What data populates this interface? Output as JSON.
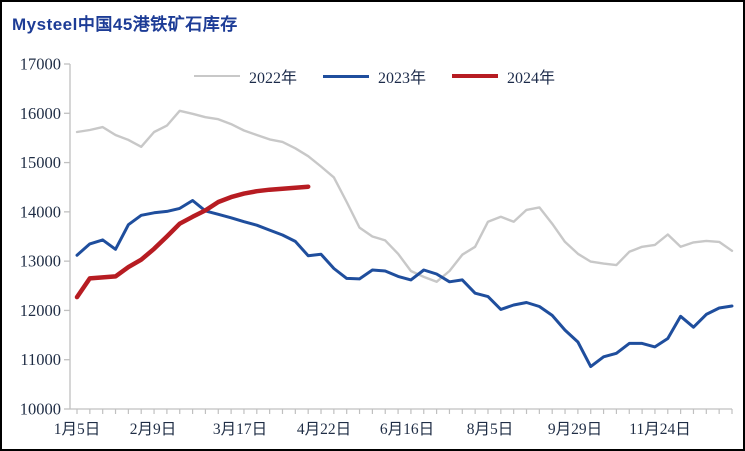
{
  "title": "Mysteel中国45港铁矿石库存",
  "colors": {
    "title_text": "#1d3c96",
    "axis_line": "#c0c0c0",
    "axis_text": "#1f2d45",
    "legend_text": "#1c2b4a",
    "series_2022": "#c8c8c8",
    "series_2023": "#1f4e9d",
    "series_2024": "#b71c22",
    "frame_border": "#000000"
  },
  "chart_data": {
    "type": "line",
    "title": "Mysteel中国45港铁矿石库存",
    "xlabel": "",
    "ylabel": "",
    "ylim": [
      10000,
      17000
    ],
    "yticks": [
      17000,
      16000,
      15000,
      14000,
      13000,
      12000,
      11000,
      10000
    ],
    "xtick_labels": [
      "1月5日",
      "2月9日",
      "3月17日",
      "4月22日",
      "6月16日",
      "8月5日",
      "9月29日",
      "11月24日"
    ],
    "grid": false,
    "legend_position": "top-center",
    "x_unit": "weekly observations, 52 per year",
    "series": [
      {
        "name": "2022年",
        "color": "#c8c8c8",
        "line_width": 2.4,
        "values": [
          15620,
          15660,
          15720,
          15560,
          15460,
          15320,
          15620,
          15750,
          16050,
          15990,
          15920,
          15880,
          15780,
          15650,
          15560,
          15470,
          15420,
          15290,
          15130,
          14920,
          14700,
          14200,
          13680,
          13500,
          13420,
          13150,
          12800,
          12680,
          12580,
          12800,
          13130,
          13290,
          13800,
          13900,
          13800,
          14040,
          14090,
          13760,
          13390,
          13150,
          12990,
          12950,
          12920,
          13190,
          13290,
          13330,
          13540,
          13290,
          13380,
          13410,
          13390,
          13210
        ]
      },
      {
        "name": "2023年",
        "color": "#1f4e9d",
        "line_width": 3,
        "values": [
          13120,
          13350,
          13430,
          13240,
          13740,
          13930,
          13980,
          14010,
          14070,
          14230,
          14020,
          13950,
          13880,
          13800,
          13730,
          13630,
          13530,
          13400,
          13110,
          13140,
          12850,
          12650,
          12640,
          12820,
          12800,
          12690,
          12620,
          12820,
          12740,
          12580,
          12620,
          12350,
          12280,
          12020,
          12110,
          12160,
          12080,
          11900,
          11600,
          11360,
          10860,
          11060,
          11130,
          11330,
          11330,
          11260,
          11430,
          11880,
          11660,
          11920,
          12050,
          12090
        ]
      },
      {
        "name": "2024年",
        "color": "#b71c22",
        "line_width": 4.5,
        "values": [
          12270,
          12650,
          12670,
          12690,
          12880,
          13030,
          13250,
          13500,
          13760,
          13900,
          14030,
          14200,
          14300,
          14370,
          14420,
          14450,
          14470,
          14490,
          14510
        ]
      }
    ]
  }
}
